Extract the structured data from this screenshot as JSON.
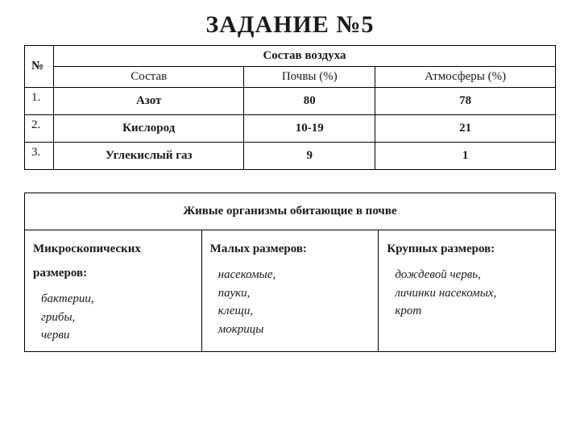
{
  "title": "ЗАДАНИЕ №5",
  "table1": {
    "type": "table",
    "border_color": "#000000",
    "background_color": "#ffffff",
    "header_span": "Состав воздуха",
    "num_header": "№",
    "columns": [
      "Состав",
      "Почвы (%)",
      "Атмосферы (%)"
    ],
    "rows": [
      {
        "num": "1.",
        "name": "Азот",
        "soil": "80",
        "atm": "78"
      },
      {
        "num": "2.",
        "name": "Кислород",
        "soil": "10-19",
        "atm": "21"
      },
      {
        "num": "3.",
        "name": "Углекислый газ",
        "soil": "9",
        "atm": "1"
      }
    ]
  },
  "table2": {
    "type": "table",
    "border_color": "#000000",
    "background_color": "#ffffff",
    "header": "Живые организмы обитающие в почве",
    "cells": [
      {
        "heading": "Микроскопических размеров:",
        "examples": [
          "бактерии,",
          "грибы,",
          "черви"
        ]
      },
      {
        "heading": "Малых размеров:",
        "examples": [
          "насекомые,",
          "пауки,",
          "клещи,",
          "мокрицы"
        ]
      },
      {
        "heading": "Крупных размеров:",
        "examples": [
          "дождевой червь,",
          "личинки насекомых,",
          "крот"
        ]
      }
    ]
  }
}
